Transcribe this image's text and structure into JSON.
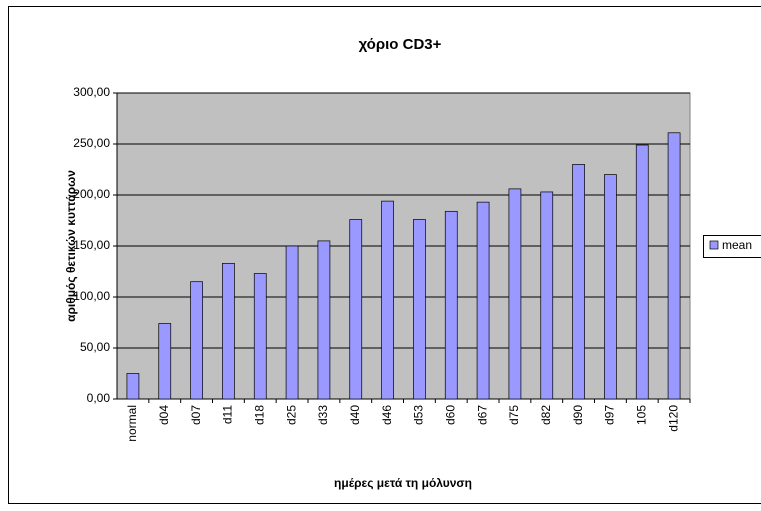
{
  "chart_data": {
    "type": "bar",
    "title": "χόριο CD3+",
    "x_label": "ημέρες μετά τη μόλυνση",
    "y_label": "αριθμός θετικών κυττάρων",
    "categories": [
      "normal",
      "d04",
      "d07",
      "d11",
      "d18",
      "d25",
      "d33",
      "d40",
      "d46",
      "d53",
      "d60",
      "d67",
      "d75",
      "d82",
      "d90",
      "d97",
      "105",
      "d120"
    ],
    "series": [
      {
        "name": "mean",
        "color": "#9999ff",
        "values": [
          25,
          74,
          115,
          133,
          123,
          150,
          155,
          176,
          194,
          176,
          184,
          193,
          206,
          203,
          230,
          220,
          249,
          261
        ]
      }
    ],
    "ylim": [
      0,
      300
    ],
    "yticks": [
      {
        "value": 0,
        "label": "0,00"
      },
      {
        "value": 50,
        "label": "50,00"
      },
      {
        "value": 100,
        "label": "100,00"
      },
      {
        "value": 150,
        "label": "150,00"
      },
      {
        "value": 200,
        "label": "200,00"
      },
      {
        "value": 250,
        "label": "250,00"
      },
      {
        "value": 300,
        "label": "300,00"
      }
    ],
    "grid": true,
    "legend": "right",
    "plot_background": "#c0c0c0"
  }
}
